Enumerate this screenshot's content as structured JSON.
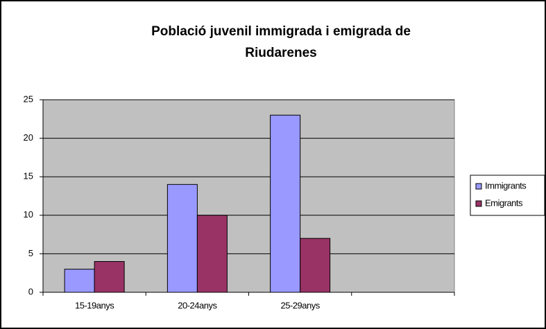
{
  "chart_data": {
    "type": "bar",
    "title": [
      "Població juvenil immigrada i emigrada de",
      "Riudarenes"
    ],
    "categories": [
      "15-19anys",
      "20-24anys",
      "25-29anys",
      null
    ],
    "series": [
      {
        "name": "Immigrants",
        "color": "#9999ff",
        "values": [
          3,
          14,
          23,
          null
        ]
      },
      {
        "name": "Emigrants",
        "color": "#993366",
        "values": [
          4,
          10,
          7,
          null
        ]
      }
    ],
    "ylim": [
      0,
      25
    ],
    "yticks": [
      0,
      5,
      10,
      15,
      20,
      25
    ],
    "grid": true,
    "legend": "right"
  }
}
